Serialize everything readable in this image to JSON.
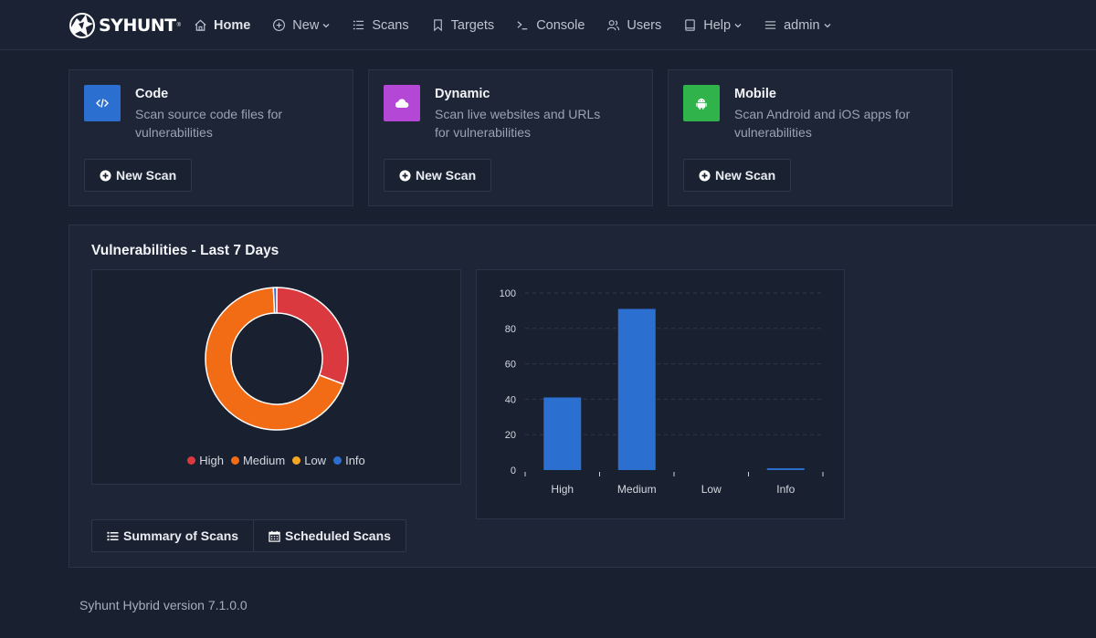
{
  "brand": {
    "name": "SYHUNT",
    "mark": "®"
  },
  "nav": [
    {
      "label": "Home",
      "icon": "home-icon",
      "active": true
    },
    {
      "label": "New",
      "icon": "plus-circle-icon",
      "dropdown": true
    },
    {
      "label": "Scans",
      "icon": "list-icon"
    },
    {
      "label": "Targets",
      "icon": "bookmark-icon"
    },
    {
      "label": "Console",
      "icon": "terminal-icon"
    },
    {
      "label": "Users",
      "icon": "users-icon"
    },
    {
      "label": "Help",
      "icon": "book-icon",
      "dropdown": true
    },
    {
      "label": "admin",
      "icon": "menu-icon",
      "dropdown": true
    }
  ],
  "cards": [
    {
      "title": "Code",
      "desc": "Scan source code files for vulnerabilities",
      "button": "New Scan",
      "icon": "code-icon",
      "color": "#2b6fd0"
    },
    {
      "title": "Dynamic",
      "desc": "Scan live websites and URLs for vulnerabilities",
      "button": "New Scan",
      "icon": "cloud-icon",
      "color": "#b547d6"
    },
    {
      "title": "Mobile",
      "desc": "Scan Android and iOS apps for vulnerabilities",
      "button": "New Scan",
      "icon": "android-icon",
      "color": "#2fb34a"
    }
  ],
  "panel": {
    "title": "Vulnerabilities - Last 7 Days",
    "buttons": [
      {
        "label": "Summary of Scans",
        "icon": "list-icon"
      },
      {
        "label": "Scheduled Scans",
        "icon": "calendar-icon"
      }
    ]
  },
  "chart_data": [
    {
      "type": "pie",
      "donut": true,
      "categories": [
        "High",
        "Medium",
        "Low",
        "Info"
      ],
      "values": [
        41,
        91,
        0,
        1
      ],
      "colors": [
        "#d9393f",
        "#f26c16",
        "#f5a623",
        "#2b6fd0"
      ],
      "legend": "bottom"
    },
    {
      "type": "bar",
      "categories": [
        "High",
        "Medium",
        "Low",
        "Info"
      ],
      "values": [
        41,
        91,
        0,
        1
      ],
      "ylim": [
        0,
        100
      ],
      "yticks": [
        0,
        20,
        40,
        60,
        80,
        100
      ],
      "color": "#2b6fd0",
      "grid": true
    }
  ],
  "footer": "Syhunt Hybrid version 7.1.0.0"
}
